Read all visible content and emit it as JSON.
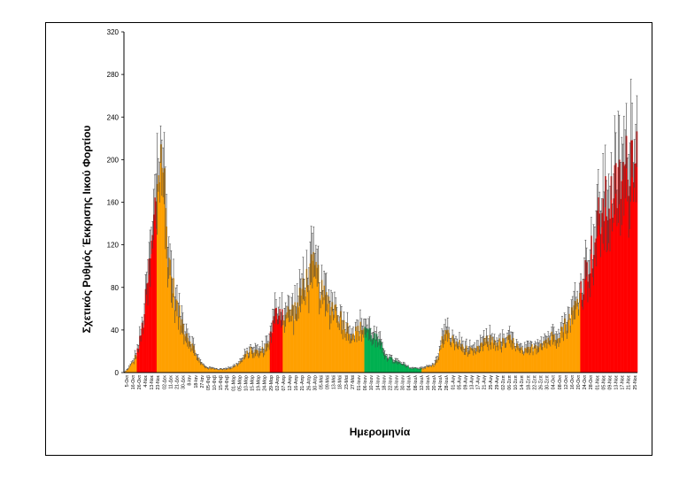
{
  "chart_data": {
    "type": "bar",
    "xlabel": "Ημερομηνία",
    "ylabel": "Σχετικός Ρυθμός Έκκρισης Ιικού Φορτίου",
    "ylim": [
      0,
      320
    ],
    "yticks": [
      0,
      40,
      80,
      120,
      160,
      200,
      240,
      280,
      320
    ],
    "grid": false,
    "error_bars": true,
    "colors": {
      "red": "#ff0000",
      "orange": "#ffa000",
      "green": "#00b050",
      "error": "#404040",
      "axis": "#000000"
    },
    "x_tick_labels": [
      "5-Οκτ",
      "16-Οκτ",
      "26-Οκτ",
      "4-Νοε",
      "13-Νοε",
      "23-Νοε",
      "02-Δεκ",
      "11-Δεκ",
      "21-Δεκ",
      "30-Δεκ",
      "8-Ιαν",
      "18-Ιαν",
      "27-Ιαν",
      "05-Φεβ",
      "10-Φεβ",
      "15-Φεβ",
      "24-Φεβ",
      "01-Μαρ",
      "05-Μαρ",
      "10-Μαρ",
      "15-Μαρ",
      "19-Μαρ",
      "24-Μαρ",
      "29-Μαρ",
      "02-Απρ",
      "07-Απρ",
      "12-Απρ",
      "16-Απρ",
      "21-Απρ",
      "26-Απρ",
      "30-Απρ",
      "05-Μαϊ",
      "09-Μαϊ",
      "13-Μαϊ",
      "18-Μαϊ",
      "23-Μαϊ",
      "27-Μαϊ",
      "01-Ιουν",
      "06-Ιουν",
      "10-Ιουν",
      "14-Ιουν",
      "18-Ιουν",
      "22-Ιουν",
      "26-Ιουν",
      "30-Ιουν",
      "04-Ιουλ",
      "08-Ιουλ",
      "12-Ιουλ",
      "16-Ιουλ",
      "20-Ιουλ",
      "24-Ιουλ",
      "28-Ιουλ",
      "01-Αυγ",
      "05-Αυγ",
      "09-Αυγ",
      "13-Αυγ",
      "17-Αυγ",
      "21-Αυγ",
      "25-Αυγ",
      "29-Αυγ",
      "02-Σεπ",
      "06-Σεπ",
      "10-Σεπ",
      "14-Σεπ",
      "18-Σεπ",
      "22-Σεπ",
      "26-Σεπ",
      "30-Σεπ",
      "04-Οκτ",
      "08-Οκτ",
      "12-Οκτ",
      "16-Οκτ",
      "20-Οκτ",
      "24-Οκτ",
      "28-Οκτ",
      "01-Νοε",
      "05-Νοε",
      "09-Νοε",
      "13-Νοε",
      "17-Νοε",
      "21-Νοε",
      "25-Νοε"
    ],
    "segments": [
      {
        "from": "5-Οκτ",
        "to": "26-Οκτ",
        "color": "orange"
      },
      {
        "from": "26-Οκτ",
        "to": "23-Νοε",
        "color": "red"
      },
      {
        "from": "23-Νοε",
        "to": "02-Απρ",
        "color": "orange"
      },
      {
        "from": "29-Μαρ",
        "to": "07-Απρ",
        "color": "red"
      },
      {
        "from": "07-Απρ",
        "to": "01-Ιουν",
        "color": "orange"
      },
      {
        "from": "06-Ιουν",
        "to": "12-Ιουλ",
        "color": "green"
      },
      {
        "from": "12-Ιουλ",
        "to": "20-Οκτ",
        "color": "orange"
      },
      {
        "from": "20-Οκτ",
        "to": "25-Νοε",
        "color": "red"
      }
    ],
    "profile_points": [
      [
        0,
        0
      ],
      [
        1,
        5
      ],
      [
        2,
        12
      ],
      [
        3,
        25
      ],
      [
        4,
        50
      ],
      [
        5,
        90
      ],
      [
        6,
        130
      ],
      [
        7,
        190
      ],
      [
        8,
        215
      ],
      [
        9,
        130
      ],
      [
        10,
        90
      ],
      [
        11,
        65
      ],
      [
        12,
        50
      ],
      [
        13,
        40
      ],
      [
        14,
        30
      ],
      [
        15,
        20
      ],
      [
        16,
        10
      ],
      [
        17,
        6
      ],
      [
        18,
        4
      ],
      [
        19,
        4
      ],
      [
        20,
        3
      ],
      [
        21,
        3
      ],
      [
        22,
        4
      ],
      [
        23,
        5
      ],
      [
        24,
        8
      ],
      [
        25,
        12
      ],
      [
        26,
        18
      ],
      [
        27,
        22
      ],
      [
        28,
        20
      ],
      [
        29,
        20
      ],
      [
        30,
        25
      ],
      [
        31,
        35
      ],
      [
        32,
        55
      ],
      [
        33,
        62
      ],
      [
        34,
        55
      ],
      [
        35,
        58
      ],
      [
        36,
        60
      ],
      [
        37,
        65
      ],
      [
        38,
        85
      ],
      [
        39,
        90
      ],
      [
        40,
        100
      ],
      [
        41,
        95
      ],
      [
        42,
        75
      ],
      [
        43,
        70
      ],
      [
        44,
        65
      ],
      [
        45,
        62
      ],
      [
        46,
        52
      ],
      [
        47,
        45
      ],
      [
        48,
        40
      ],
      [
        49,
        38
      ],
      [
        50,
        42
      ],
      [
        51,
        45
      ],
      [
        52,
        40
      ],
      [
        53,
        35
      ],
      [
        54,
        30
      ],
      [
        55,
        22
      ],
      [
        56,
        15
      ],
      [
        57,
        12
      ],
      [
        58,
        10
      ],
      [
        59,
        8
      ],
      [
        60,
        6
      ],
      [
        61,
        4
      ],
      [
        62,
        4
      ],
      [
        63,
        4
      ],
      [
        64,
        5
      ],
      [
        65,
        6
      ],
      [
        66,
        8
      ],
      [
        67,
        20
      ],
      [
        68,
        40
      ],
      [
        69,
        35
      ],
      [
        70,
        30
      ],
      [
        71,
        28
      ],
      [
        72,
        25
      ],
      [
        73,
        22
      ],
      [
        74,
        20
      ],
      [
        75,
        22
      ],
      [
        76,
        28
      ],
      [
        77,
        30
      ],
      [
        78,
        32
      ],
      [
        79,
        30
      ],
      [
        80,
        28
      ],
      [
        81,
        30
      ],
      [
        82,
        32
      ],
      [
        83,
        28
      ],
      [
        84,
        22
      ],
      [
        85,
        20
      ],
      [
        86,
        22
      ],
      [
        87,
        25
      ],
      [
        88,
        28
      ],
      [
        89,
        30
      ],
      [
        90,
        32
      ],
      [
        91,
        35
      ],
      [
        92,
        38
      ],
      [
        93,
        42
      ],
      [
        94,
        48
      ],
      [
        95,
        55
      ],
      [
        96,
        65
      ],
      [
        97,
        80
      ],
      [
        98,
        95
      ],
      [
        99,
        110
      ],
      [
        100,
        125
      ],
      [
        101,
        150
      ],
      [
        102,
        160
      ],
      [
        103,
        165
      ],
      [
        104,
        170
      ],
      [
        105,
        180
      ],
      [
        106,
        190
      ],
      [
        107,
        200
      ],
      [
        108,
        215
      ],
      [
        109,
        240
      ]
    ]
  }
}
